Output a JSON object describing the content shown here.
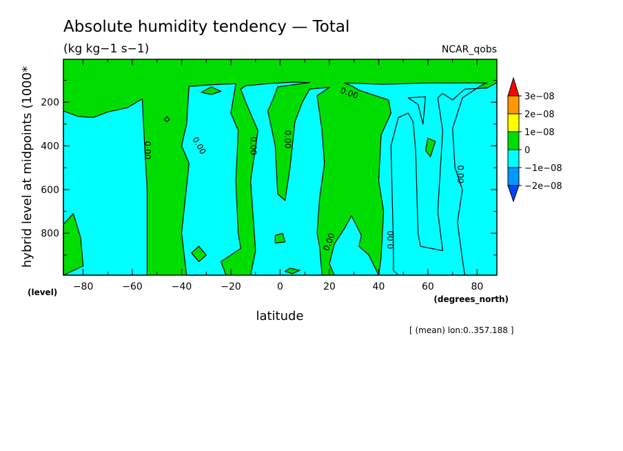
{
  "chart_data": {
    "type": "heatmap",
    "subtype": "filled-contour",
    "title": "Absolute humidity tendency — Total",
    "units": "(kg kg−1 s−1)",
    "source": "NCAR_qobs",
    "xlabel": "latitude",
    "x_units": "(degrees_north)",
    "ylabel": "hybrid level at midpoints (1000*",
    "y_units": "(level)",
    "note": "[ (mean) lon:0..357.188 ]",
    "xlim": [
      -88,
      88
    ],
    "ylim": [
      992,
      3.6
    ],
    "x_ticks": [
      -80,
      -60,
      -40,
      -20,
      0,
      20,
      40,
      60,
      80
    ],
    "x_tick_labels": [
      "−80",
      "−60",
      "−40",
      "−20",
      "0",
      "20",
      "40",
      "60",
      "80"
    ],
    "y_ticks": [
      200,
      400,
      600,
      800
    ],
    "y_tick_labels": [
      "200",
      "400",
      "600",
      "800"
    ],
    "y_reversed": true,
    "contour_levels": [
      -2e-08,
      -1e-08,
      0,
      1e-08,
      2e-08,
      3e-08
    ],
    "colorbar": [
      {
        "label": "3e−08",
        "color": "#ff0000"
      },
      {
        "label": "2e−08",
        "color": "#ff9900"
      },
      {
        "label": "1e−08",
        "color": "#ffff00"
      },
      {
        "label": "0",
        "color": "#00dd00"
      },
      {
        "label": "−1e−08",
        "color": "#00ffff"
      },
      {
        "label": "−2e−08",
        "color": "#0099ff"
      },
      {
        "label": "",
        "color": "#0044ff"
      }
    ],
    "background_fill": "#00dd00",
    "contour_labels": [
      {
        "text": "0.00",
        "lat": -54,
        "level": 420,
        "rotation": 90
      },
      {
        "text": "0.00",
        "lat": -33,
        "level": 400,
        "rotation": 60
      },
      {
        "text": "0.00",
        "lat": -11,
        "level": 400,
        "rotation": 90
      },
      {
        "text": "0.00",
        "lat": 3,
        "level": 370,
        "rotation": 90
      },
      {
        "text": "0.00",
        "lat": 28,
        "level": 160,
        "rotation": 20
      },
      {
        "text": "0.00",
        "lat": 20,
        "level": 840,
        "rotation": -70
      },
      {
        "text": "0.00",
        "lat": 45,
        "level": 830,
        "rotation": -90
      },
      {
        "text": "0.00",
        "lat": 73,
        "level": 530,
        "rotation": 90
      }
    ],
    "negative_regions": [
      {
        "points": [
          [
            -88,
            240
          ],
          [
            -82,
            265
          ],
          [
            -76,
            270
          ],
          [
            -70,
            245
          ],
          [
            -62,
            225
          ],
          [
            -56,
            185
          ],
          [
            -55,
            400
          ],
          [
            -54,
            600
          ],
          [
            -54,
            992
          ],
          [
            -88,
            992
          ]
        ]
      },
      {
        "points": [
          [
            -37,
            128
          ],
          [
            -28,
            120
          ],
          [
            -18,
            115
          ],
          [
            -20,
            250
          ],
          [
            -17,
            330
          ],
          [
            -18,
            560
          ],
          [
            -17,
            800
          ],
          [
            -16,
            870
          ],
          [
            -24,
            930
          ],
          [
            -22,
            992
          ],
          [
            -38,
            992
          ],
          [
            -40,
            800
          ],
          [
            -37,
            480
          ],
          [
            -40,
            400
          ],
          [
            -38,
            300
          ]
        ]
      },
      {
        "points": [
          [
            -5,
            115
          ],
          [
            5,
            108
          ],
          [
            12,
            110
          ],
          [
            -1,
            130
          ],
          [
            -3,
            190
          ],
          [
            -5,
            240
          ],
          [
            -2,
            400
          ],
          [
            -1,
            620
          ],
          [
            2,
            650
          ],
          [
            4,
            500
          ],
          [
            6,
            290
          ],
          [
            9,
            200
          ],
          [
            12,
            140
          ],
          [
            20,
            132
          ],
          [
            15,
            170
          ],
          [
            17,
            330
          ],
          [
            18,
            480
          ],
          [
            16,
            640
          ],
          [
            15,
            800
          ],
          [
            16,
            860
          ],
          [
            17,
            992
          ],
          [
            22,
            992
          ],
          [
            20,
            940
          ],
          [
            22,
            850
          ],
          [
            26,
            780
          ],
          [
            29,
            720
          ],
          [
            33,
            810
          ],
          [
            32,
            860
          ],
          [
            36,
            900
          ],
          [
            40,
            992
          ],
          [
            41,
            910
          ],
          [
            42,
            700
          ],
          [
            40,
            560
          ],
          [
            41,
            350
          ],
          [
            45,
            250
          ],
          [
            44,
            190
          ],
          [
            32,
            145
          ],
          [
            29,
            125
          ],
          [
            26,
            112
          ],
          [
            42,
            118
          ],
          [
            60,
            112
          ],
          [
            84,
            112
          ],
          [
            82,
            120
          ],
          [
            74,
            180
          ],
          [
            70,
            320
          ],
          [
            71,
            500
          ],
          [
            74,
            600
          ],
          [
            72,
            750
          ],
          [
            74,
            920
          ],
          [
            75,
            992
          ],
          [
            48,
            992
          ],
          [
            46,
            970
          ],
          [
            46,
            860
          ],
          [
            45,
            400
          ],
          [
            48,
            270
          ],
          [
            52,
            250
          ],
          [
            54,
            290
          ],
          [
            55,
            420
          ],
          [
            56,
            800
          ],
          [
            57,
            860
          ],
          [
            66,
            880
          ],
          [
            64,
            700
          ],
          [
            66,
            330
          ],
          [
            64,
            180
          ],
          [
            66,
            160
          ],
          [
            70,
            190
          ],
          [
            75,
            140
          ],
          [
            84,
            135
          ],
          [
            88,
            110
          ],
          [
            88,
            992
          ],
          [
            -12,
            992
          ],
          [
            -10,
            880
          ],
          [
            -12,
            560
          ],
          [
            -9,
            330
          ],
          [
            -14,
            200
          ],
          [
            -16,
            140
          ],
          [
            -14,
            125
          ]
        ]
      },
      {
        "points": [
          [
            52,
            180
          ],
          [
            59,
            175
          ],
          [
            58,
            300
          ],
          [
            56,
            210
          ]
        ]
      }
    ],
    "positive_islands": [
      {
        "points": [
          [
            -88,
            760
          ],
          [
            -84,
            710
          ],
          [
            -81,
            820
          ],
          [
            -80,
            950
          ],
          [
            -88,
            992
          ]
        ]
      },
      {
        "points": [
          [
            -33,
            860
          ],
          [
            -30,
            900
          ],
          [
            -33,
            930
          ],
          [
            -36,
            890
          ]
        ]
      },
      {
        "points": [
          [
            -2,
            810
          ],
          [
            1,
            800
          ],
          [
            2,
            840
          ],
          [
            -2,
            845
          ]
        ]
      },
      {
        "points": [
          [
            4,
            960
          ],
          [
            8,
            970
          ],
          [
            5,
            985
          ],
          [
            2,
            975
          ]
        ]
      },
      {
        "points": [
          [
            60,
            365
          ],
          [
            63,
            380
          ],
          [
            61,
            450
          ],
          [
            59,
            420
          ]
        ]
      },
      {
        "points": [
          [
            -28,
            130
          ],
          [
            -24,
            150
          ],
          [
            -28,
            165
          ],
          [
            -32,
            155
          ]
        ]
      },
      {
        "points": [
          [
            -46,
            265
          ],
          [
            -45,
            280
          ],
          [
            -46,
            290
          ],
          [
            -47,
            280
          ]
        ]
      }
    ]
  }
}
